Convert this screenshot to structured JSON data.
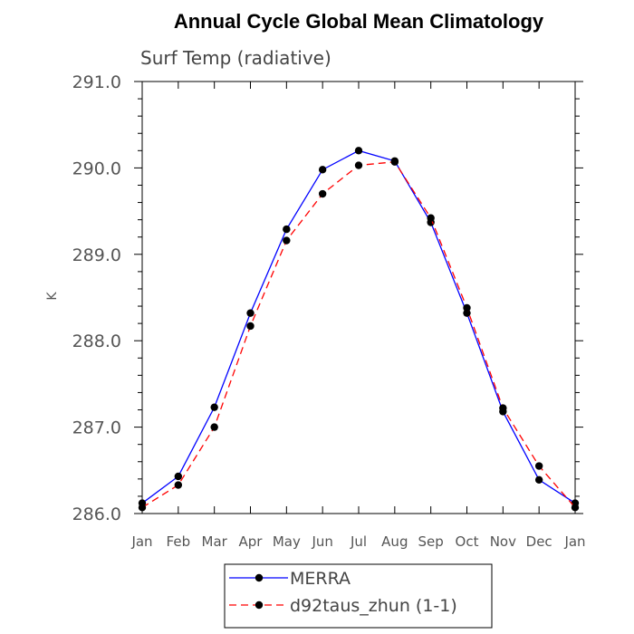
{
  "chart_data": {
    "type": "line",
    "title": "Annual Cycle Global Mean Climatology",
    "subtitle": "Surf Temp (radiative)",
    "ylabel": "K",
    "xlabel": "",
    "ylim": [
      286.0,
      291.0
    ],
    "yticks": [
      "286.0",
      "287.0",
      "288.0",
      "289.0",
      "290.0",
      "291.0"
    ],
    "categories": [
      "Jan",
      "Feb",
      "Mar",
      "Apr",
      "May",
      "Jun",
      "Jul",
      "Aug",
      "Sep",
      "Oct",
      "Nov",
      "Dec",
      "Jan"
    ],
    "grid": false,
    "legend_placement": "bottom",
    "series": [
      {
        "name": "MERRA",
        "color": "#0000ff",
        "dash": "solid",
        "marker": "filled-circle",
        "values": [
          286.12,
          286.43,
          287.23,
          288.32,
          289.29,
          289.98,
          290.2,
          290.08,
          289.37,
          288.32,
          287.18,
          286.39,
          286.12
        ]
      },
      {
        "name": "d92taus_zhun (1-1)",
        "color": "#ff0000",
        "dash": "dashed",
        "marker": "filled-circle",
        "values": [
          286.07,
          286.33,
          287.0,
          288.17,
          289.16,
          289.7,
          290.03,
          290.07,
          289.42,
          288.38,
          287.22,
          286.55,
          286.07
        ]
      }
    ]
  }
}
